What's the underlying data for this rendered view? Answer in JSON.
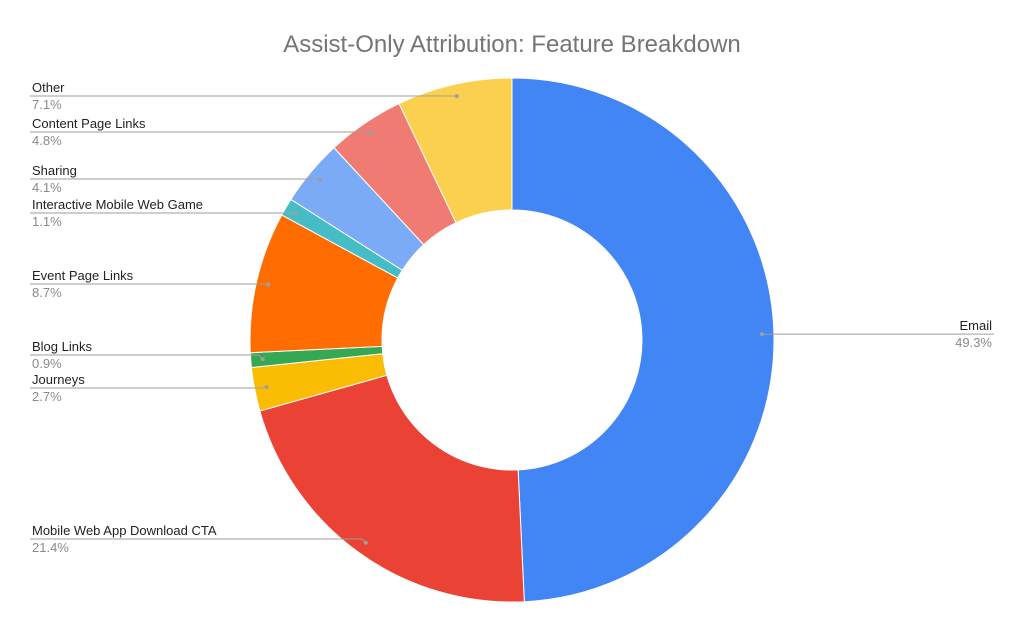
{
  "chart_data": {
    "type": "pie",
    "variant": "donut",
    "title": "Assist-Only Attribution: Feature Breakdown",
    "slices": [
      {
        "label": "Email",
        "value": 49.3,
        "display": "49.3%",
        "color": "#4285F4"
      },
      {
        "label": "Mobile Web App Download CTA",
        "value": 21.4,
        "display": "21.4%",
        "color": "#EA4335"
      },
      {
        "label": "Journeys",
        "value": 2.7,
        "display": "2.7%",
        "color": "#FBBC04"
      },
      {
        "label": "Blog Links",
        "value": 0.9,
        "display": "0.9%",
        "color": "#34A853"
      },
      {
        "label": "Event Page Links",
        "value": 8.7,
        "display": "8.7%",
        "color": "#FF6D01"
      },
      {
        "label": "Interactive Mobile Web Game",
        "value": 1.1,
        "display": "1.1%",
        "color": "#46BDC6"
      },
      {
        "label": "Sharing",
        "value": 4.1,
        "display": "4.1%",
        "color": "#7BAAF7"
      },
      {
        "label": "Content Page Links",
        "value": 4.8,
        "display": "4.8%",
        "color": "#F07B72"
      },
      {
        "label": "Other",
        "value": 7.1,
        "display": "7.1%",
        "color": "#FCD04F"
      }
    ],
    "legend": "none",
    "labels_position": "outside-with-leader-lines"
  }
}
